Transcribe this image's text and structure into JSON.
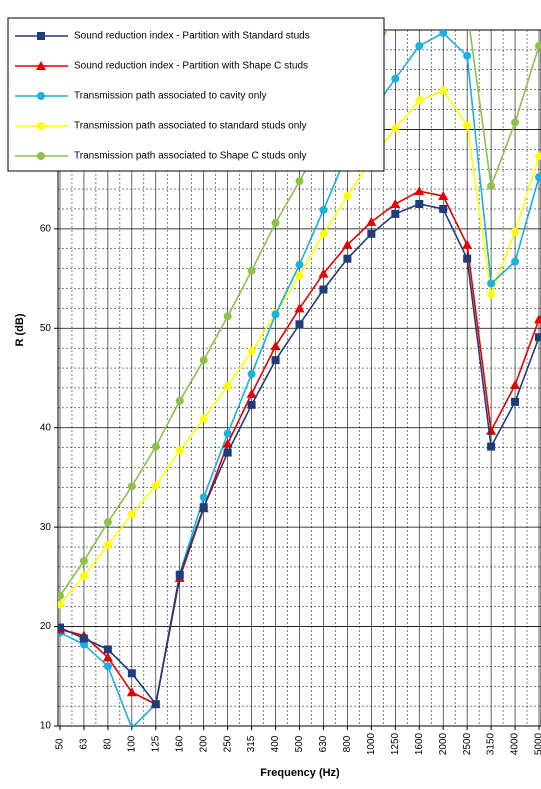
{
  "chart_data": {
    "type": "line",
    "x_label": "Frequency (Hz)",
    "y_label": "R (dB)",
    "categories": [
      "50",
      "63",
      "80",
      "100",
      "125",
      "160",
      "200",
      "250",
      "315",
      "400",
      "500",
      "630",
      "800",
      "1000",
      "1250",
      "1600",
      "2000",
      "2500",
      "3150",
      "4000",
      "5000"
    ],
    "ylim": [
      10,
      80
    ],
    "yticks": [
      10,
      20,
      30,
      40,
      50,
      60,
      70
    ],
    "grid": true,
    "legend": "upper left",
    "series": [
      {
        "name": "Sound reduction index - Partition with Standard studs",
        "color": "#1f3d7a",
        "marker": "square",
        "values": [
          19.9,
          18.8,
          17.7,
          15.3,
          12.2,
          25.2,
          32.0,
          37.5,
          42.3,
          46.8,
          50.4,
          53.9,
          57.0,
          59.5,
          61.5,
          62.5,
          62.0,
          57.0,
          38.1,
          42.6,
          49.1
        ]
      },
      {
        "name": "Sound reduction index - Partition with Shape C studs",
        "color": "#e60000",
        "marker": "triangle",
        "values": [
          19.7,
          19.1,
          16.9,
          13.4,
          12.2,
          24.9,
          31.9,
          38.4,
          43.4,
          48.2,
          52.0,
          55.5,
          58.4,
          60.7,
          62.5,
          63.8,
          63.3,
          58.4,
          39.7,
          44.3,
          50.9
        ]
      },
      {
        "name": "Transmission path associated to cavity only",
        "color": "#1ab0e0",
        "marker": "circle",
        "values": [
          19.4,
          18.2,
          16.0,
          9.8,
          12.2,
          25.3,
          33.0,
          39.4,
          45.4,
          51.4,
          56.4,
          61.9,
          67.6,
          71.7,
          75.1,
          78.4,
          79.7,
          77.4,
          54.5,
          56.7,
          65.2
        ]
      },
      {
        "name": "Transmission path associated to standard studs only",
        "color": "#ffff00",
        "marker": "circle",
        "values": [
          22.2,
          25.1,
          28.2,
          31.3,
          34.2,
          37.7,
          40.9,
          44.2,
          47.7,
          51.5,
          55.3,
          59.5,
          63.3,
          67.0,
          70.1,
          72.9,
          73.9,
          70.4,
          53.4,
          59.7,
          67.3
        ]
      },
      {
        "name": "Transmission path associated to Shape C studs only",
        "color": "#8cc24a",
        "marker": "circle",
        "values": [
          23.1,
          26.6,
          30.5,
          34.1,
          38.1,
          42.7,
          46.8,
          51.2,
          55.8,
          60.6,
          64.8,
          69.1,
          73.4,
          77.2,
          81.5,
          84.0,
          86.0,
          82.0,
          64.3,
          70.7,
          78.4
        ]
      }
    ]
  }
}
